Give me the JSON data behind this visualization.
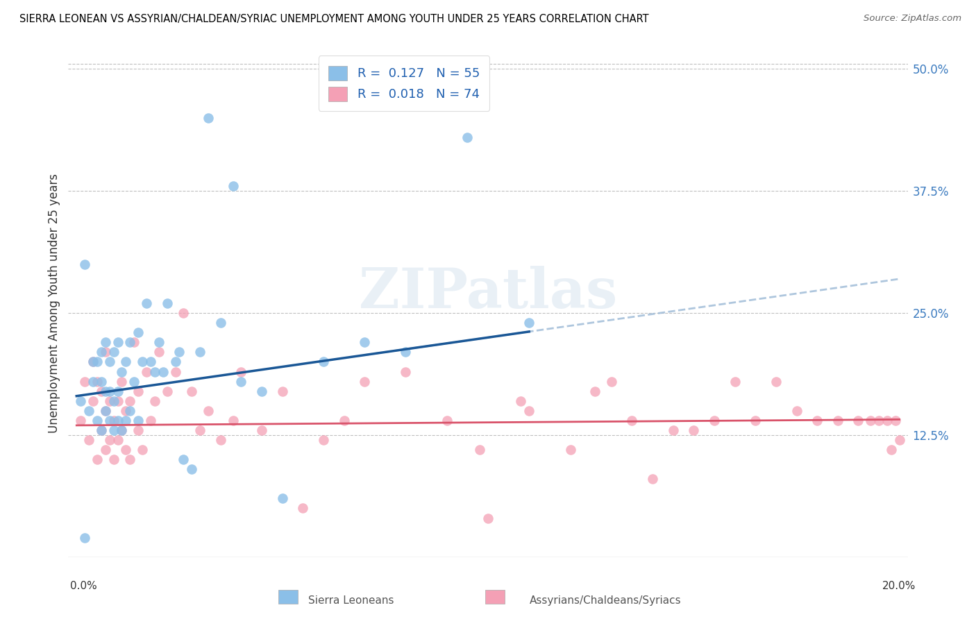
{
  "title": "SIERRA LEONEAN VS ASSYRIAN/CHALDEAN/SYRIAC UNEMPLOYMENT AMONG YOUTH UNDER 25 YEARS CORRELATION CHART",
  "source": "Source: ZipAtlas.com",
  "ylabel": "Unemployment Among Youth under 25 years",
  "ytick_labels": [
    "12.5%",
    "25.0%",
    "37.5%",
    "50.0%"
  ],
  "ytick_values": [
    0.125,
    0.25,
    0.375,
    0.5
  ],
  "xlim": [
    0.0,
    0.2
  ],
  "ylim": [
    0.0,
    0.52
  ],
  "blue_color": "#8bbfe8",
  "pink_color": "#f4a0b5",
  "trend_blue_solid": "#1a5796",
  "trend_pink_solid": "#d9536a",
  "trend_blue_dash": "#a0bcd8",
  "watermark_text": "ZIPatlas",
  "legend_label1": "R =  0.127   N = 55",
  "legend_label2": "R =  0.018   N = 74",
  "legend_text_color": "#2060b0",
  "sierra_x": [
    0.001,
    0.002,
    0.003,
    0.004,
    0.004,
    0.005,
    0.005,
    0.006,
    0.006,
    0.006,
    0.007,
    0.007,
    0.007,
    0.008,
    0.008,
    0.008,
    0.009,
    0.009,
    0.009,
    0.01,
    0.01,
    0.01,
    0.011,
    0.011,
    0.012,
    0.012,
    0.013,
    0.013,
    0.014,
    0.015,
    0.015,
    0.016,
    0.017,
    0.018,
    0.019,
    0.02,
    0.021,
    0.022,
    0.024,
    0.025,
    0.026,
    0.028,
    0.03,
    0.032,
    0.035,
    0.038,
    0.04,
    0.045,
    0.05,
    0.06,
    0.07,
    0.08,
    0.095,
    0.002,
    0.11
  ],
  "sierra_y": [
    0.16,
    0.02,
    0.15,
    0.18,
    0.2,
    0.14,
    0.2,
    0.13,
    0.18,
    0.21,
    0.15,
    0.17,
    0.22,
    0.14,
    0.17,
    0.2,
    0.13,
    0.16,
    0.21,
    0.14,
    0.17,
    0.22,
    0.13,
    0.19,
    0.14,
    0.2,
    0.15,
    0.22,
    0.18,
    0.14,
    0.23,
    0.2,
    0.26,
    0.2,
    0.19,
    0.22,
    0.19,
    0.26,
    0.2,
    0.21,
    0.1,
    0.09,
    0.21,
    0.45,
    0.24,
    0.38,
    0.18,
    0.17,
    0.06,
    0.2,
    0.22,
    0.21,
    0.43,
    0.3,
    0.24
  ],
  "assyrian_x": [
    0.001,
    0.002,
    0.003,
    0.004,
    0.004,
    0.005,
    0.005,
    0.006,
    0.006,
    0.007,
    0.007,
    0.007,
    0.008,
    0.008,
    0.009,
    0.009,
    0.01,
    0.01,
    0.011,
    0.011,
    0.012,
    0.012,
    0.013,
    0.013,
    0.014,
    0.015,
    0.015,
    0.016,
    0.017,
    0.018,
    0.019,
    0.02,
    0.022,
    0.024,
    0.026,
    0.028,
    0.03,
    0.032,
    0.035,
    0.038,
    0.04,
    0.045,
    0.05,
    0.055,
    0.06,
    0.065,
    0.07,
    0.08,
    0.09,
    0.1,
    0.11,
    0.12,
    0.13,
    0.14,
    0.15,
    0.16,
    0.165,
    0.17,
    0.175,
    0.18,
    0.185,
    0.19,
    0.193,
    0.195,
    0.197,
    0.198,
    0.199,
    0.2,
    0.145,
    0.155,
    0.135,
    0.126,
    0.108,
    0.098
  ],
  "assyrian_y": [
    0.14,
    0.18,
    0.12,
    0.16,
    0.2,
    0.1,
    0.18,
    0.13,
    0.17,
    0.11,
    0.15,
    0.21,
    0.12,
    0.16,
    0.1,
    0.14,
    0.12,
    0.16,
    0.13,
    0.18,
    0.11,
    0.15,
    0.1,
    0.16,
    0.22,
    0.13,
    0.17,
    0.11,
    0.19,
    0.14,
    0.16,
    0.21,
    0.17,
    0.19,
    0.25,
    0.17,
    0.13,
    0.15,
    0.12,
    0.14,
    0.19,
    0.13,
    0.17,
    0.05,
    0.12,
    0.14,
    0.18,
    0.19,
    0.14,
    0.04,
    0.15,
    0.11,
    0.18,
    0.08,
    0.13,
    0.18,
    0.14,
    0.18,
    0.15,
    0.14,
    0.14,
    0.14,
    0.14,
    0.14,
    0.14,
    0.11,
    0.14,
    0.12,
    0.13,
    0.14,
    0.14,
    0.17,
    0.16,
    0.11
  ]
}
